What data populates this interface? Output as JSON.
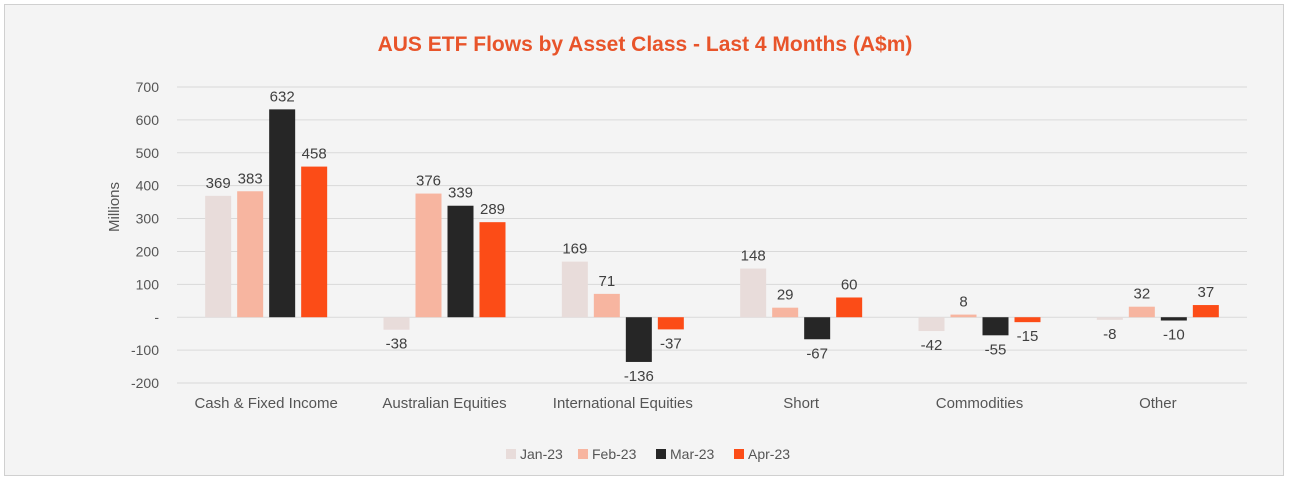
{
  "chart_data": {
    "type": "bar",
    "title": "AUS ETF Flows by Asset Class - Last 4 Months (A$m)",
    "xlabel": "",
    "ylabel": "Millions",
    "ylim": [
      -200,
      700
    ],
    "yticks": [
      700,
      600,
      500,
      400,
      300,
      200,
      100,
      0,
      -100,
      -200
    ],
    "ytick_labels": [
      "700",
      "600",
      "500",
      "400",
      "300",
      "200",
      "100",
      "-",
      "-100",
      "-200"
    ],
    "grid": true,
    "legend_position": "bottom",
    "categories": [
      "Cash & Fixed Income",
      "Australian Equities",
      "International Equities",
      "Short",
      "Commodities",
      "Other"
    ],
    "series": [
      {
        "name": "Jan-23",
        "color": "#e8dcda",
        "values": [
          369,
          -38,
          169,
          148,
          -42,
          -8
        ]
      },
      {
        "name": "Feb-23",
        "color": "#f7b5a0",
        "values": [
          383,
          376,
          71,
          29,
          8,
          32
        ]
      },
      {
        "name": "Mar-23",
        "color": "#262626",
        "values": [
          632,
          339,
          -136,
          -67,
          -55,
          -10
        ]
      },
      {
        "name": "Apr-23",
        "color": "#fc4c17",
        "values": [
          458,
          289,
          -37,
          60,
          -15,
          37
        ]
      }
    ]
  }
}
